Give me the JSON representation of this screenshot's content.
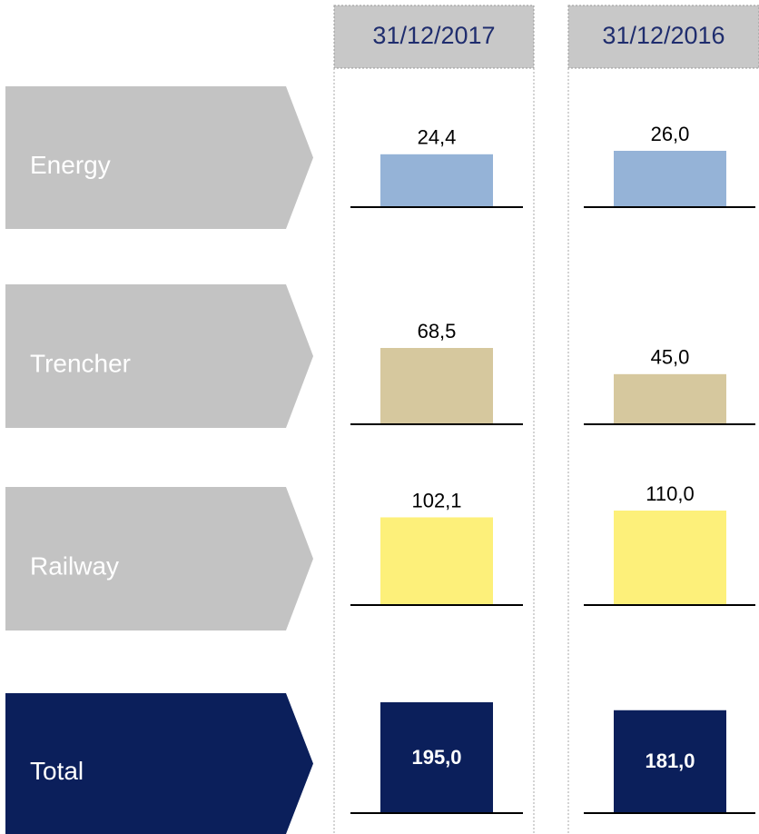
{
  "chart_data": {
    "type": "bar",
    "categories": [
      "Energy",
      "Trencher",
      "Railway",
      "Total"
    ],
    "colors": [
      "#95b3d7",
      "#d6c89e",
      "#fdf07a",
      "#0b1f5b"
    ],
    "series": [
      {
        "name": "31/12/2017",
        "values": [
          24.4,
          68.5,
          102.1,
          195.0
        ],
        "value_labels": [
          "24,4",
          "68,5",
          "102,1",
          "195,0"
        ]
      },
      {
        "name": "31/12/2016",
        "values": [
          26.0,
          45.0,
          110.0,
          181.0
        ],
        "value_labels": [
          "26,0",
          "45,0",
          "110,0",
          "181,0"
        ]
      }
    ]
  }
}
